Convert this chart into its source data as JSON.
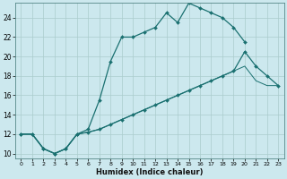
{
  "xlabel": "Humidex (Indice chaleur)",
  "bg_color": "#cce8ee",
  "grid_color": "#aacccc",
  "line_color": "#1a7070",
  "xlim": [
    -0.5,
    23.5
  ],
  "ylim": [
    9.5,
    25.5
  ],
  "xticks": [
    0,
    1,
    2,
    3,
    4,
    5,
    6,
    7,
    8,
    9,
    10,
    11,
    12,
    13,
    14,
    15,
    16,
    17,
    18,
    19,
    20,
    21,
    22,
    23
  ],
  "yticks": [
    10,
    12,
    14,
    16,
    18,
    20,
    22,
    24
  ],
  "line1_x": [
    0,
    1,
    2,
    3,
    4,
    5,
    6,
    7,
    8,
    9,
    10,
    11,
    12,
    13,
    14,
    15,
    16,
    17,
    18,
    19,
    20
  ],
  "line1_y": [
    12,
    12,
    10.5,
    10,
    10.5,
    12,
    12.5,
    15.5,
    19.5,
    22,
    22,
    22.5,
    23,
    24.5,
    23.5,
    25.5,
    25,
    24.5,
    24,
    23,
    21.5
  ],
  "line2_x": [
    0,
    1,
    2,
    3,
    4,
    5,
    6,
    7,
    8,
    9,
    10,
    11,
    12,
    13,
    14,
    15,
    16,
    17,
    18,
    19,
    20,
    21,
    22,
    23
  ],
  "line2_y": [
    12,
    12,
    10.5,
    10,
    10.5,
    12,
    12.2,
    12.5,
    13.0,
    13.5,
    14.0,
    14.5,
    15.0,
    15.5,
    16.0,
    16.5,
    17.0,
    17.5,
    18.0,
    18.5,
    20.5,
    19.0,
    18.0,
    17.0
  ],
  "line3_x": [
    0,
    1,
    2,
    3,
    4,
    5,
    6,
    7,
    8,
    9,
    10,
    11,
    12,
    13,
    14,
    15,
    16,
    17,
    18,
    19,
    20,
    21,
    22,
    23
  ],
  "line3_y": [
    12,
    12,
    10.5,
    10,
    10.5,
    12,
    12.2,
    12.5,
    13.0,
    13.5,
    14.0,
    14.5,
    15.0,
    15.5,
    16.0,
    16.5,
    17.0,
    17.5,
    18.0,
    18.5,
    19.0,
    17.5,
    17.0,
    17.0
  ]
}
